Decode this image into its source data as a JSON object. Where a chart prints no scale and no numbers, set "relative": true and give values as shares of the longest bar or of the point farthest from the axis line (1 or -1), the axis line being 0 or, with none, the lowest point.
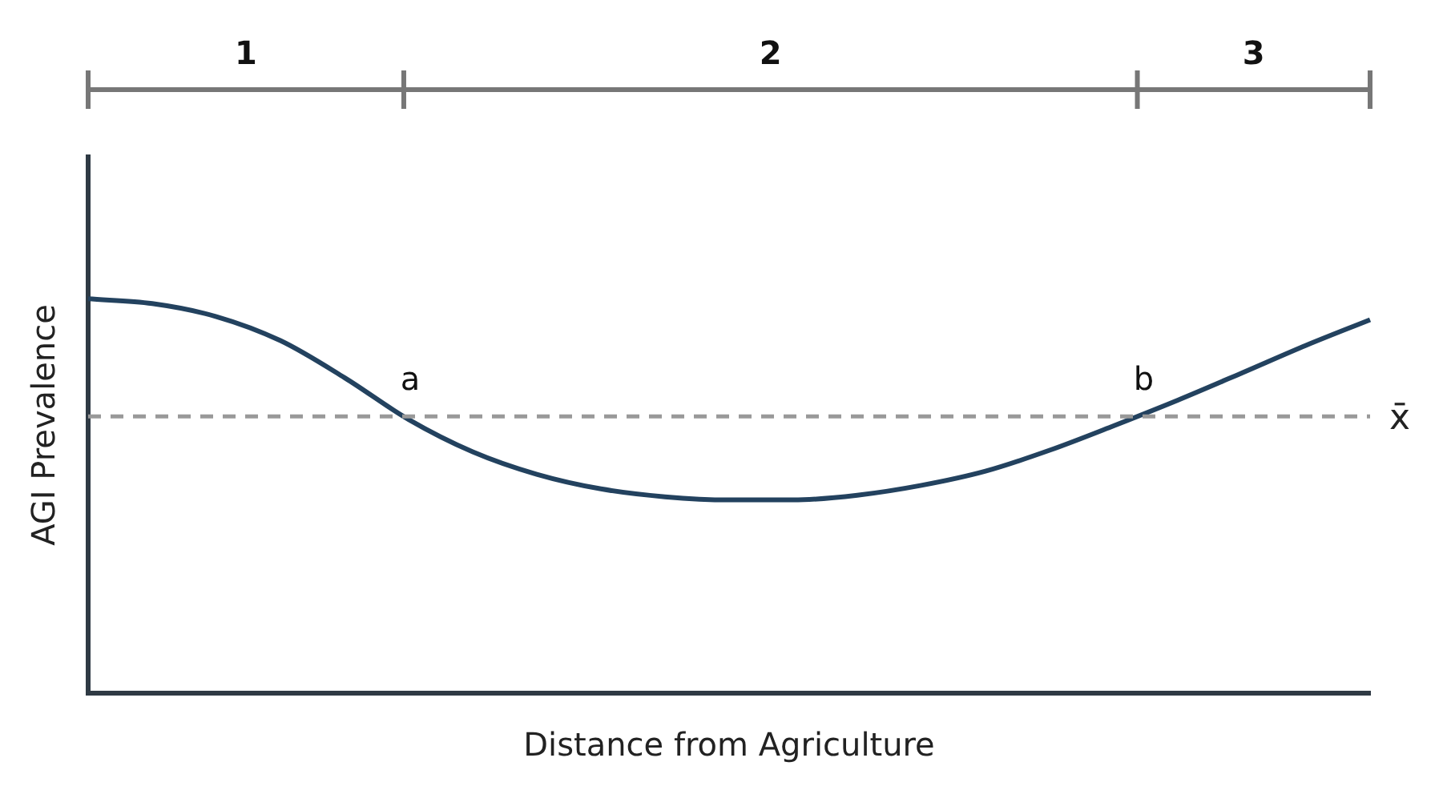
{
  "chart_data": {
    "type": "line",
    "relative": true,
    "xlabel": "Distance from Agriculture",
    "ylabel": "AGI Prevalence",
    "categories": [
      null,
      null,
      null,
      null,
      null,
      null,
      null,
      null,
      null,
      null,
      null,
      null,
      null,
      null,
      null,
      null,
      null,
      null,
      null,
      null,
      null
    ],
    "series": [
      {
        "color": "#23425f",
        "values": [
          1.0,
          0.988,
          0.955,
          0.894,
          0.8,
          0.694,
          0.612,
          0.555,
          0.518,
          0.498,
          0.49,
          0.49,
          0.502,
          0.527,
          0.563,
          0.616,
          0.678,
          0.743,
          0.812,
          0.882,
          0.947
        ]
      }
    ],
    "ref_lines": [
      {
        "axis": "y",
        "value": 0.702,
        "label": "x̄",
        "color": "#999999",
        "line_style": "dashed"
      }
    ],
    "annotations": [
      "1",
      "2",
      "3",
      "a",
      "b"
    ],
    "marker": "none",
    "line_style": "solid",
    "grid": false,
    "legend": false
  }
}
